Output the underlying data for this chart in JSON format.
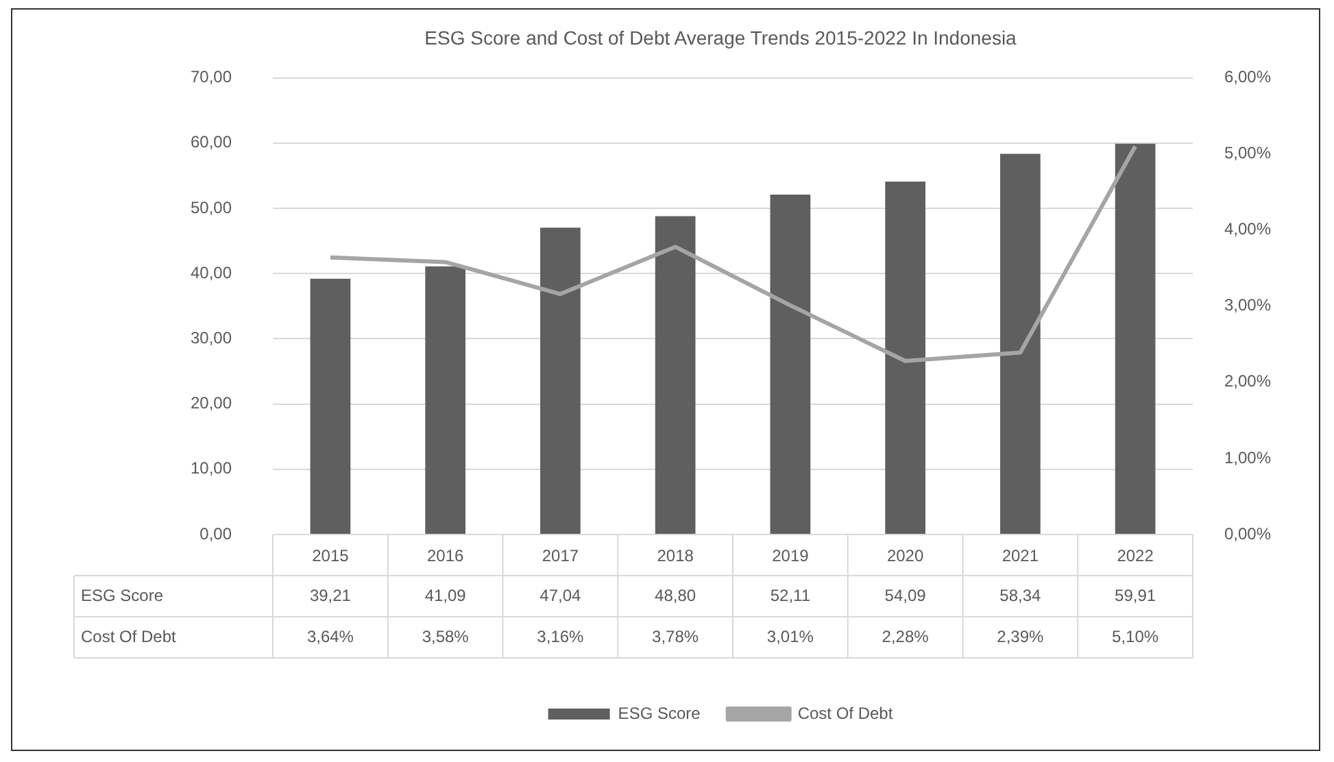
{
  "chart_data": {
    "type": "bar",
    "title": "ESG Score and Cost of Debt Average Trends 2015-2022 In Indonesia",
    "categories": [
      "2015",
      "2016",
      "2017",
      "2018",
      "2019",
      "2020",
      "2021",
      "2022"
    ],
    "series": [
      {
        "name": "ESG Score",
        "color": "#5f5f5f",
        "values": [
          39.21,
          41.09,
          47.04,
          48.8,
          52.11,
          54.09,
          58.34,
          59.91
        ],
        "value_labels": [
          "39,21",
          "41,09",
          "47,04",
          "48,80",
          "52,11",
          "54,09",
          "58,34",
          "59,91"
        ]
      },
      {
        "name": "Cost Of Debt",
        "type": "line",
        "axis": "y2",
        "color": "#a5a5a5",
        "values": [
          3.64,
          3.58,
          3.16,
          3.78,
          3.01,
          2.28,
          2.39,
          5.1
        ],
        "value_labels": [
          "3,64%",
          "3,58%",
          "3,16%",
          "3,78%",
          "3,01%",
          "2,28%",
          "2,39%",
          "5,10%"
        ]
      }
    ],
    "ylim": [
      0,
      70
    ],
    "yticks": [
      {
        "value": 0,
        "label": "0,00"
      },
      {
        "value": 10,
        "label": "10,00"
      },
      {
        "value": 20,
        "label": "20,00"
      },
      {
        "value": 30,
        "label": "30,00"
      },
      {
        "value": 40,
        "label": "40,00"
      },
      {
        "value": 50,
        "label": "50,00"
      },
      {
        "value": 60,
        "label": "60,00"
      },
      {
        "value": 70,
        "label": "70,00"
      }
    ],
    "y2lim": [
      0,
      6
    ],
    "y2ticks": [
      {
        "value": 0,
        "label": "0,00%"
      },
      {
        "value": 1,
        "label": "1,00%"
      },
      {
        "value": 2,
        "label": "2,00%"
      },
      {
        "value": 3,
        "label": "3,00%"
      },
      {
        "value": 4,
        "label": "4,00%"
      },
      {
        "value": 5,
        "label": "5,00%"
      },
      {
        "value": 6,
        "label": "6,00%"
      }
    ],
    "grid": "y",
    "legend": "bottom",
    "marker": "none",
    "line_style": "solid"
  }
}
